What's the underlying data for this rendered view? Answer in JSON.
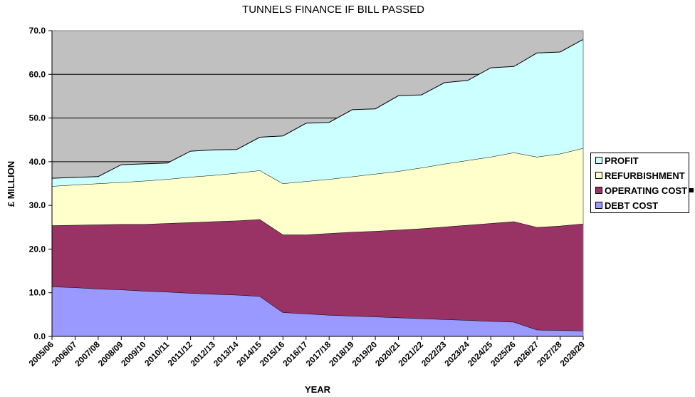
{
  "chart_data": {
    "type": "area",
    "stacked": true,
    "title": "TUNNELS FINANCE IF BILL PASSED",
    "xlabel": "YEAR",
    "ylabel": "£ MILLION",
    "ylim": [
      0,
      70
    ],
    "yticks": [
      "0.0",
      "10.0",
      "20.0",
      "30.0",
      "40.0",
      "50.0",
      "60.0",
      "70.0"
    ],
    "grid": "horizontal major gridlines",
    "legend_position": "right",
    "categories": [
      "2005/06",
      "2006/07",
      "2007/08",
      "2008/09",
      "2009/10",
      "2010/11",
      "2011/12",
      "2012/13",
      "2013/14",
      "2014/15",
      "2015/16",
      "2016/17",
      "2017/18",
      "2018/19",
      "2019/20",
      "2020/21",
      "2021/22",
      "2022/23",
      "2023/24",
      "2024/25",
      "2025/26",
      "2026/27",
      "2027/28",
      "2028/29"
    ],
    "series": [
      {
        "name": "DEBT COST",
        "color": "#9999FF",
        "values": [
          11.4,
          11.2,
          10.9,
          10.7,
          10.4,
          10.2,
          9.9,
          9.7,
          9.5,
          9.2,
          5.5,
          5.2,
          4.9,
          4.7,
          4.5,
          4.3,
          4.1,
          3.9,
          3.7,
          3.5,
          3.3,
          1.5,
          1.4,
          1.3
        ]
      },
      {
        "name": "OPERATING COST",
        "color": "#993366",
        "values": [
          14.0,
          14.3,
          14.7,
          15.0,
          15.3,
          15.7,
          16.2,
          16.6,
          17.0,
          17.6,
          17.8,
          18.1,
          18.7,
          19.2,
          19.6,
          20.1,
          20.6,
          21.2,
          21.8,
          22.4,
          23.0,
          23.5,
          23.9,
          24.5
        ]
      },
      {
        "name": "REFURBISHMENT",
        "color": "#FFFFCC",
        "values": [
          9.0,
          9.2,
          9.4,
          9.6,
          9.9,
          10.1,
          10.4,
          10.6,
          10.9,
          11.2,
          11.7,
          12.2,
          12.4,
          12.7,
          13.1,
          13.4,
          13.9,
          14.4,
          14.8,
          15.2,
          15.8,
          16.1,
          16.5,
          17.3
        ]
      },
      {
        "name": "PROFIT",
        "color": "#CCFFFF",
        "values": [
          1.8,
          1.7,
          1.6,
          4.0,
          3.9,
          3.7,
          5.9,
          5.8,
          5.4,
          7.6,
          10.9,
          13.3,
          13.0,
          15.3,
          14.9,
          17.3,
          16.7,
          18.6,
          18.3,
          20.4,
          19.7,
          23.8,
          23.3,
          24.9
        ]
      }
    ],
    "plot_background": "#C0C0C0"
  },
  "legend": {
    "items": [
      {
        "label": "PROFIT",
        "color": "#CCFFFF"
      },
      {
        "label": "REFURBISHMENT",
        "color": "#FFFFCC"
      },
      {
        "label": "OPERATING COST",
        "color": "#993366"
      },
      {
        "label": "DEBT COST",
        "color": "#9999FF"
      }
    ]
  }
}
